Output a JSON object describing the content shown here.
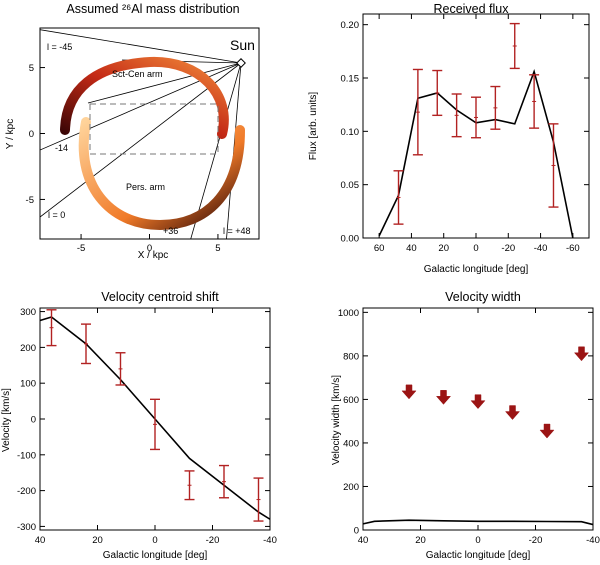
{
  "chart_data": [
    {
      "id": "map",
      "type": "map",
      "title": "Assumed ²⁶Al mass distribution",
      "xlabel": "X / kpc",
      "ylabel": "Y / kpc",
      "xlim": [
        -8,
        8
      ],
      "ylim": [
        -8,
        8
      ],
      "xticks": [
        -5,
        0,
        5
      ],
      "yticks": [
        -5,
        0,
        5
      ],
      "sun": {
        "label": "Sun",
        "x": 6.3,
        "y": 5.6
      },
      "arm_labels": [
        "Sct-Cen arm",
        "Pers. arm"
      ],
      "sightlines": [
        {
          "label": "l = -45",
          "l": -45
        },
        {
          "label": "-14",
          "l": -14
        },
        {
          "label": "l = 0",
          "l": 0
        },
        {
          "label": "+36",
          "l": 36
        },
        {
          "label": "l = +48",
          "l": 48
        }
      ]
    },
    {
      "id": "flux",
      "type": "line",
      "title": "Received flux",
      "xlabel": "Galactic longitude [deg]",
      "ylabel": "Flux [arb. units]",
      "xlim": [
        70,
        -70
      ],
      "ylim": [
        0,
        0.21
      ],
      "xticks": [
        60,
        40,
        20,
        0,
        -20,
        -40,
        -60
      ],
      "xtick_labels": [
        "60",
        "40",
        "20",
        "0",
        "-20",
        "-40",
        "-60"
      ],
      "yticks": [
        0,
        0.05,
        0.1,
        0.15,
        0.2
      ],
      "ytick_labels": [
        "0.00",
        "0.05",
        "0.10",
        "0.15",
        "0.20"
      ],
      "model": {
        "x": [
          60,
          48,
          36,
          24,
          12,
          0,
          -12,
          -24,
          -36,
          -48,
          -60
        ],
        "y": [
          0.002,
          0.04,
          0.131,
          0.136,
          0.12,
          0.108,
          0.111,
          0.107,
          0.156,
          0.09,
          0.0
        ]
      },
      "data": {
        "x": [
          48,
          36,
          24,
          12,
          0,
          -12,
          -24,
          -36,
          -48
        ],
        "y": [
          0.038,
          0.118,
          0.136,
          0.115,
          0.113,
          0.122,
          0.18,
          0.128,
          0.068
        ],
        "err": [
          0.025,
          0.04,
          0.021,
          0.02,
          0.019,
          0.02,
          0.021,
          0.025,
          0.039
        ]
      }
    },
    {
      "id": "velocity",
      "type": "line",
      "title": "Velocity centroid shift",
      "xlabel": "Galactic longitude [deg]",
      "ylabel": "Velocity [km/s]",
      "xlim": [
        40,
        -40
      ],
      "ylim": [
        -310,
        310
      ],
      "xticks": [
        40,
        20,
        0,
        -20,
        -40
      ],
      "xtick_labels": [
        "40",
        "20",
        "0",
        "-20",
        "-40"
      ],
      "yticks": [
        -300,
        -200,
        -100,
        0,
        100,
        200,
        300
      ],
      "ytick_labels": [
        "-300",
        "-200",
        "-100",
        "0",
        "100",
        "200",
        "300"
      ],
      "model": {
        "x": [
          40,
          36,
          24,
          12,
          0,
          -12,
          -24,
          -36,
          -40
        ],
        "y": [
          275,
          285,
          210,
          110,
          0,
          -110,
          -185,
          -260,
          -280
        ]
      },
      "data": {
        "x": [
          36,
          24,
          12,
          0,
          -12,
          -24,
          -36
        ],
        "y": [
          255,
          210,
          140,
          -15,
          -185,
          -175,
          -225
        ],
        "err": [
          50,
          55,
          45,
          70,
          40,
          45,
          60
        ]
      }
    },
    {
      "id": "width",
      "type": "line",
      "title": "Velocity width",
      "xlabel": "Galactic longitude [deg]",
      "ylabel": "Velocity width [km/s]",
      "xlim": [
        40,
        -40
      ],
      "ylim": [
        0,
        1020
      ],
      "xticks": [
        40,
        20,
        0,
        -20,
        -40
      ],
      "xtick_labels": [
        "40",
        "20",
        "0",
        "-20",
        "-40"
      ],
      "yticks": [
        0,
        200,
        400,
        600,
        800,
        1000
      ],
      "ytick_labels": [
        "0",
        "200",
        "400",
        "600",
        "800",
        "1000"
      ],
      "model": {
        "x": [
          40,
          36,
          24,
          12,
          0,
          -12,
          -24,
          -36,
          -40
        ],
        "y": [
          28,
          40,
          45,
          42,
          40,
          40,
          39,
          38,
          25
        ]
      },
      "upper_limits": {
        "x": [
          24,
          12,
          0,
          -12,
          -24,
          -36
        ],
        "y": [
          630,
          605,
          585,
          535,
          450,
          805
        ]
      }
    }
  ],
  "colors": {
    "model": "#000000",
    "data": "#b22222",
    "limit": "#9b1414",
    "dash": "#777777"
  }
}
